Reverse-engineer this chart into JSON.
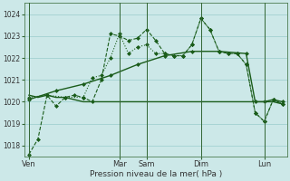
{
  "background_color": "#cce8e8",
  "grid_color": "#99cccc",
  "line_color": "#1a5c1a",
  "xlabel": "Pression niveau de la mer( hPa )",
  "ylim": [
    1017.5,
    1024.5
  ],
  "yticks": [
    1018,
    1019,
    1020,
    1021,
    1022,
    1023,
    1024
  ],
  "xtick_labels": [
    "Ven",
    "Mar",
    "Sam",
    "Dim",
    "Lun"
  ],
  "xtick_positions": [
    0,
    10,
    13,
    19,
    26
  ],
  "vline_positions": [
    0,
    10,
    13,
    19,
    26
  ],
  "num_points": 29,
  "series_zigzag": {
    "x": [
      0,
      1,
      2,
      3,
      4,
      5,
      6,
      7,
      8,
      9,
      10,
      11,
      12,
      13,
      14,
      15,
      16,
      17,
      18,
      19,
      20,
      21,
      22,
      23,
      24,
      25,
      26,
      27,
      28
    ],
    "y": [
      1017.6,
      1018.3,
      1020.3,
      1019.8,
      1020.2,
      1020.3,
      1020.2,
      1020.0,
      1021.0,
      1023.1,
      1023.0,
      1022.8,
      1022.9,
      1023.3,
      1022.8,
      1022.2,
      1022.1,
      1022.1,
      1022.6,
      1023.8,
      1023.3,
      1022.3,
      1022.2,
      1022.2,
      1021.7,
      1019.5,
      1019.1,
      1020.1,
      1019.9
    ],
    "linestyle": "--",
    "marker": "D",
    "markersize": 2.0,
    "linewidth": 0.8
  },
  "series_flat": {
    "x": [
      0,
      1,
      2,
      3,
      4,
      5,
      6,
      7,
      8,
      9,
      10,
      11,
      12,
      13,
      14,
      15,
      16,
      17,
      18,
      19,
      20,
      21,
      22,
      23,
      24,
      25,
      26,
      27,
      28
    ],
    "y": [
      1020.3,
      1020.2,
      1020.3,
      1020.2,
      1020.2,
      1020.1,
      1020.0,
      1020.0,
      1020.0,
      1020.0,
      1020.0,
      1020.0,
      1020.0,
      1020.0,
      1020.0,
      1020.0,
      1020.0,
      1020.0,
      1020.0,
      1020.0,
      1020.0,
      1020.0,
      1020.0,
      1020.0,
      1020.0,
      1020.0,
      1020.0,
      1020.0,
      1019.9
    ],
    "linestyle": "-",
    "marker": null,
    "linewidth": 1.0
  },
  "series_trend": {
    "x": [
      0,
      3,
      6,
      9,
      12,
      15,
      18,
      21,
      24,
      25,
      26,
      27,
      28
    ],
    "y": [
      1020.1,
      1020.5,
      1020.8,
      1021.2,
      1021.7,
      1022.1,
      1022.3,
      1022.3,
      1022.2,
      1020.0,
      1020.0,
      1020.1,
      1020.0
    ],
    "linestyle": "-",
    "marker": "D",
    "markersize": 2.0,
    "linewidth": 1.0
  },
  "series_dotted": {
    "x": [
      0,
      2,
      4,
      6,
      7,
      8,
      9,
      10,
      11,
      12,
      13,
      14,
      15,
      16,
      17,
      18,
      19,
      20,
      21,
      22,
      23,
      24,
      25,
      26,
      27,
      28
    ],
    "y": [
      1020.2,
      1020.3,
      1020.2,
      1020.2,
      1021.1,
      1021.2,
      1022.0,
      1023.1,
      1022.2,
      1022.5,
      1022.6,
      1022.2,
      1022.2,
      1022.1,
      1022.1,
      1022.6,
      1023.8,
      1023.3,
      1022.3,
      1022.2,
      1022.2,
      1021.7,
      1019.5,
      1019.1,
      1020.1,
      1019.9
    ],
    "linestyle": ":",
    "marker": "D",
    "markersize": 2.0,
    "linewidth": 0.8
  }
}
